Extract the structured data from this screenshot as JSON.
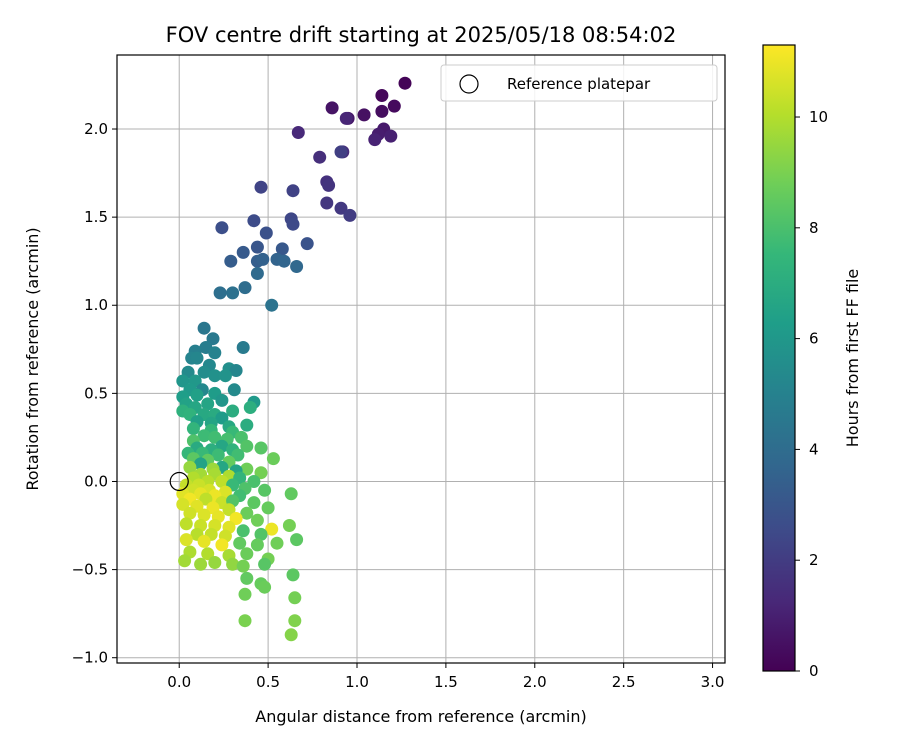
{
  "chart_data": {
    "type": "scatter",
    "title": "FOV centre drift starting at 2025/05/18 08:54:02",
    "xlabel": "Angular distance from reference (arcmin)",
    "ylabel": "Rotation from reference (arcmin)",
    "xlim": [
      -0.35,
      3.07
    ],
    "ylim": [
      -1.03,
      2.42
    ],
    "xticks": [
      0.0,
      0.5,
      1.0,
      1.5,
      2.0,
      2.5,
      3.0
    ],
    "xtick_labels": [
      "0.0",
      "0.5",
      "1.0",
      "1.5",
      "2.0",
      "2.5",
      "3.0"
    ],
    "yticks": [
      -1.0,
      -0.5,
      0.0,
      0.5,
      1.0,
      1.5,
      2.0
    ],
    "ytick_labels": [
      "−1.0",
      "−0.5",
      "0.0",
      "0.5",
      "1.0",
      "1.5",
      "2.0"
    ],
    "grid": true,
    "legend": {
      "placement": "top-right",
      "entries": [
        "Reference platepar"
      ]
    },
    "reference_point": {
      "x": 0.0,
      "y": 0.0,
      "marker": "open-circle"
    },
    "colorbar": {
      "label": "Hours from first FF file",
      "colormap": "viridis",
      "range": [
        0,
        11.3
      ],
      "ticks": [
        0,
        2,
        4,
        6,
        8,
        10
      ],
      "tick_labels": [
        "0",
        "2",
        "4",
        "6",
        "8",
        "10"
      ]
    },
    "colormap_stops": [
      "#440154",
      "#482878",
      "#3e4a89",
      "#31688e",
      "#26828e",
      "#1f9e89",
      "#35b779",
      "#6ece58",
      "#b5de2b",
      "#fde725"
    ],
    "points": [
      [
        1.27,
        2.26,
        0.1
      ],
      [
        1.14,
        2.19,
        0.2
      ],
      [
        1.21,
        2.13,
        0.3
      ],
      [
        1.14,
        2.1,
        0.4
      ],
      [
        1.04,
        2.08,
        0.5
      ],
      [
        0.86,
        2.12,
        0.6
      ],
      [
        0.95,
        2.06,
        0.7
      ],
      [
        1.15,
        2.0,
        0.8
      ],
      [
        1.12,
        1.97,
        0.9
      ],
      [
        1.19,
        1.96,
        1.0
      ],
      [
        1.1,
        1.94,
        1.1
      ],
      [
        0.94,
        2.06,
        1.2
      ],
      [
        0.67,
        1.98,
        1.3
      ],
      [
        0.92,
        1.87,
        1.4
      ],
      [
        0.79,
        1.84,
        1.5
      ],
      [
        0.83,
        1.7,
        1.6
      ],
      [
        0.84,
        1.68,
        1.7
      ],
      [
        0.83,
        1.58,
        1.8
      ],
      [
        0.91,
        1.55,
        1.9
      ],
      [
        0.96,
        1.51,
        2.0
      ],
      [
        0.91,
        1.87,
        2.1
      ],
      [
        0.64,
        1.65,
        2.2
      ],
      [
        0.46,
        1.67,
        2.3
      ],
      [
        0.63,
        1.49,
        2.4
      ],
      [
        0.64,
        1.46,
        2.5
      ],
      [
        0.42,
        1.48,
        2.6
      ],
      [
        0.24,
        1.44,
        2.7
      ],
      [
        0.49,
        1.41,
        2.8
      ],
      [
        0.72,
        1.35,
        2.9
      ],
      [
        0.44,
        1.33,
        3.0
      ],
      [
        0.58,
        1.32,
        3.1
      ],
      [
        0.36,
        1.3,
        3.2
      ],
      [
        0.29,
        1.25,
        3.3
      ],
      [
        0.44,
        1.25,
        3.4
      ],
      [
        0.47,
        1.26,
        3.5
      ],
      [
        0.55,
        1.26,
        3.6
      ],
      [
        0.59,
        1.25,
        3.7
      ],
      [
        0.66,
        1.22,
        3.8
      ],
      [
        0.44,
        1.18,
        3.9
      ],
      [
        0.37,
        1.1,
        4.0
      ],
      [
        0.23,
        1.07,
        4.1
      ],
      [
        0.3,
        1.07,
        4.2
      ],
      [
        0.52,
        1.0,
        4.3
      ],
      [
        0.14,
        0.87,
        4.5
      ],
      [
        0.19,
        0.81,
        4.6
      ],
      [
        0.36,
        0.76,
        4.7
      ],
      [
        0.15,
        0.76,
        4.8
      ],
      [
        0.09,
        0.74,
        4.9
      ],
      [
        0.2,
        0.73,
        5.0
      ],
      [
        0.07,
        0.7,
        5.1
      ],
      [
        0.1,
        0.7,
        5.2
      ],
      [
        0.17,
        0.66,
        5.3
      ],
      [
        0.05,
        0.62,
        5.4
      ],
      [
        0.14,
        0.62,
        5.5
      ],
      [
        0.28,
        0.64,
        5.6
      ],
      [
        0.32,
        0.63,
        5.2
      ],
      [
        0.2,
        0.6,
        5.7
      ],
      [
        0.26,
        0.6,
        5.8
      ],
      [
        0.02,
        0.57,
        5.9
      ],
      [
        0.09,
        0.57,
        6.0
      ],
      [
        0.13,
        0.52,
        5.3
      ],
      [
        0.31,
        0.52,
        5.4
      ],
      [
        0.06,
        0.52,
        6.1
      ],
      [
        0.2,
        0.5,
        6.2
      ],
      [
        0.02,
        0.48,
        6.3
      ],
      [
        0.1,
        0.49,
        6.4
      ],
      [
        0.04,
        0.44,
        6.5
      ],
      [
        0.16,
        0.44,
        6.6
      ],
      [
        0.24,
        0.46,
        5.9
      ],
      [
        0.42,
        0.45,
        6.1
      ],
      [
        0.09,
        0.42,
        6.7
      ],
      [
        0.14,
        0.38,
        6.8
      ],
      [
        0.2,
        0.38,
        6.9
      ],
      [
        0.3,
        0.4,
        7.0
      ],
      [
        0.4,
        0.42,
        7.1
      ],
      [
        0.02,
        0.4,
        7.2
      ],
      [
        0.06,
        0.38,
        7.3
      ],
      [
        0.24,
        0.36,
        6.2
      ],
      [
        0.1,
        0.34,
        6.4
      ],
      [
        0.18,
        0.33,
        6.6
      ],
      [
        0.28,
        0.31,
        6.8
      ],
      [
        0.38,
        0.32,
        7.0
      ],
      [
        0.08,
        0.3,
        7.4
      ],
      [
        0.18,
        0.29,
        7.5
      ],
      [
        0.3,
        0.28,
        7.6
      ],
      [
        0.14,
        0.26,
        7.7
      ],
      [
        0.2,
        0.25,
        7.8
      ],
      [
        0.27,
        0.24,
        7.9
      ],
      [
        0.35,
        0.25,
        8.0
      ],
      [
        0.08,
        0.23,
        8.1
      ],
      [
        0.24,
        0.2,
        6.7
      ],
      [
        0.38,
        0.2,
        8.2
      ],
      [
        0.1,
        0.19,
        6.9
      ],
      [
        0.18,
        0.18,
        7.1
      ],
      [
        0.3,
        0.18,
        7.3
      ],
      [
        0.46,
        0.19,
        8.3
      ],
      [
        0.05,
        0.16,
        7.5
      ],
      [
        0.13,
        0.16,
        7.6
      ],
      [
        0.22,
        0.15,
        7.7
      ],
      [
        0.33,
        0.15,
        7.8
      ],
      [
        0.08,
        0.13,
        8.4
      ],
      [
        0.16,
        0.12,
        8.5
      ],
      [
        0.28,
        0.11,
        8.6
      ],
      [
        0.53,
        0.13,
        8.7
      ],
      [
        0.12,
        0.1,
        6.5
      ],
      [
        0.24,
        0.08,
        6.7
      ],
      [
        0.06,
        0.08,
        9.5
      ],
      [
        0.19,
        0.07,
        9.6
      ],
      [
        0.38,
        0.07,
        8.8
      ],
      [
        0.32,
        0.06,
        6.6
      ],
      [
        0.46,
        0.05,
        8.9
      ],
      [
        0.12,
        0.04,
        9.7
      ],
      [
        0.2,
        0.04,
        9.8
      ],
      [
        0.28,
        0.03,
        9.9
      ],
      [
        0.08,
        0.02,
        10.0
      ],
      [
        0.34,
        0.02,
        7.4
      ],
      [
        0.16,
        0.0,
        10.1
      ],
      [
        0.24,
        0.0,
        10.2
      ],
      [
        0.42,
        0.0,
        8.0
      ],
      [
        0.04,
        -0.02,
        10.3
      ],
      [
        0.11,
        -0.02,
        10.4
      ],
      [
        0.3,
        -0.02,
        7.6
      ],
      [
        0.37,
        -0.04,
        8.1
      ],
      [
        0.48,
        -0.05,
        8.3
      ],
      [
        0.63,
        -0.07,
        8.5
      ],
      [
        0.08,
        -0.05,
        10.5
      ],
      [
        0.17,
        -0.05,
        10.6
      ],
      [
        0.26,
        -0.06,
        10.7
      ],
      [
        0.02,
        -0.07,
        10.8
      ],
      [
        0.12,
        -0.07,
        10.9
      ],
      [
        0.2,
        -0.08,
        11.0
      ],
      [
        0.34,
        -0.08,
        7.8
      ],
      [
        0.06,
        -0.1,
        11.1
      ],
      [
        0.15,
        -0.1,
        10.2
      ],
      [
        0.24,
        -0.12,
        10.4
      ],
      [
        0.3,
        -0.11,
        8.2
      ],
      [
        0.42,
        -0.12,
        8.4
      ],
      [
        0.02,
        -0.13,
        10.6
      ],
      [
        0.1,
        -0.14,
        10.8
      ],
      [
        0.19,
        -0.15,
        11.0
      ],
      [
        0.28,
        -0.16,
        10.3
      ],
      [
        0.5,
        -0.15,
        8.6
      ],
      [
        0.38,
        -0.18,
        8.7
      ],
      [
        0.06,
        -0.18,
        10.5
      ],
      [
        0.14,
        -0.19,
        10.7
      ],
      [
        0.22,
        -0.2,
        10.9
      ],
      [
        0.32,
        -0.21,
        11.1
      ],
      [
        0.44,
        -0.22,
        8.8
      ],
      [
        0.04,
        -0.24,
        10.2
      ],
      [
        0.12,
        -0.25,
        10.4
      ],
      [
        0.2,
        -0.25,
        10.6
      ],
      [
        0.28,
        -0.26,
        10.8
      ],
      [
        0.62,
        -0.25,
        8.9
      ],
      [
        0.52,
        -0.27,
        11.0
      ],
      [
        0.36,
        -0.28,
        8.0
      ],
      [
        0.1,
        -0.3,
        10.1
      ],
      [
        0.18,
        -0.3,
        10.3
      ],
      [
        0.26,
        -0.31,
        10.5
      ],
      [
        0.46,
        -0.3,
        8.2
      ],
      [
        0.66,
        -0.33,
        8.4
      ],
      [
        0.04,
        -0.33,
        10.7
      ],
      [
        0.14,
        -0.34,
        10.9
      ],
      [
        0.24,
        -0.36,
        11.1
      ],
      [
        0.34,
        -0.35,
        8.5
      ],
      [
        0.44,
        -0.36,
        8.6
      ],
      [
        0.55,
        -0.35,
        8.8
      ],
      [
        0.06,
        -0.4,
        9.9
      ],
      [
        0.16,
        -0.41,
        10.0
      ],
      [
        0.28,
        -0.42,
        9.8
      ],
      [
        0.38,
        -0.41,
        8.7
      ],
      [
        0.5,
        -0.44,
        8.9
      ],
      [
        0.03,
        -0.45,
        9.7
      ],
      [
        0.12,
        -0.47,
        9.6
      ],
      [
        0.2,
        -0.46,
        9.5
      ],
      [
        0.3,
        -0.47,
        9.4
      ],
      [
        0.36,
        -0.48,
        8.9
      ],
      [
        0.48,
        -0.47,
        8.3
      ],
      [
        0.64,
        -0.53,
        8.4
      ],
      [
        0.38,
        -0.55,
        8.5
      ],
      [
        0.46,
        -0.58,
        8.6
      ],
      [
        0.48,
        -0.6,
        8.7
      ],
      [
        0.37,
        -0.64,
        8.8
      ],
      [
        0.65,
        -0.66,
        8.9
      ],
      [
        0.37,
        -0.79,
        9.0
      ],
      [
        0.65,
        -0.79,
        9.1
      ],
      [
        0.63,
        -0.87,
        9.2
      ]
    ]
  }
}
